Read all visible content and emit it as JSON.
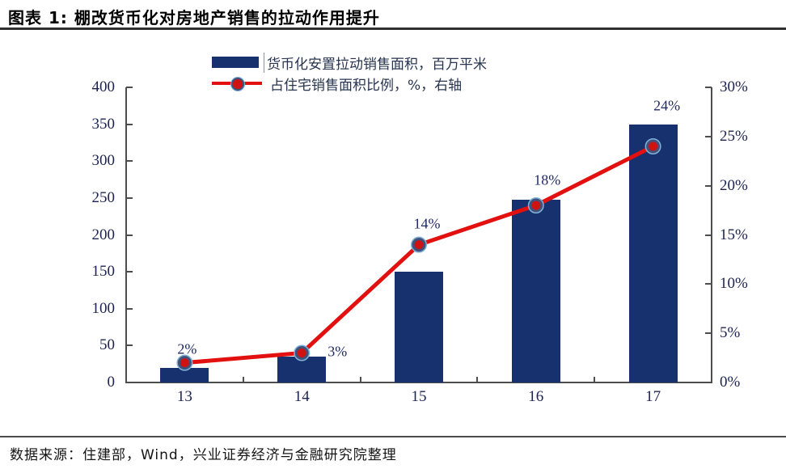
{
  "title": "图表 1: 棚改货币化对房地产销售的拉动作用提升",
  "source": "数据来源：住建部，Wind，兴业证券经济与金融研究院整理",
  "legend": {
    "bar_label": "货币化安置拉动销售面积，百万平米",
    "line_label": "占住宅销售面积比例，%，右轴"
  },
  "colors": {
    "bar": "#16316d",
    "line": "#e31010",
    "marker_fill": "#cf1212",
    "marker_ring": "#41517a",
    "marker_halo": "#7fb2d9",
    "axis": "#4d4d4d",
    "tick_text": "#1c2350",
    "data_label_text": "#1f2a66"
  },
  "chart_data": {
    "type": "bar",
    "subtype": "bar+line-dual-axis",
    "title": "棚改货币化对房地产销售的拉动作用提升",
    "categories": [
      "13",
      "14",
      "15",
      "16",
      "17"
    ],
    "series": [
      {
        "name": "货币化安置拉动销售面积，百万平米",
        "type": "bar",
        "axis": "left",
        "values": [
          20,
          35,
          150,
          248,
          350
        ]
      },
      {
        "name": "占住宅销售面积比例，%，右轴",
        "type": "line",
        "axis": "right",
        "values": [
          2,
          3,
          14,
          18,
          24
        ],
        "point_labels": [
          "2%",
          "3%",
          "14%",
          "18%",
          "24%"
        ]
      }
    ],
    "left_axis": {
      "min": 0,
      "max": 400,
      "tick_values": [
        0,
        50,
        100,
        150,
        200,
        250,
        300,
        350,
        400
      ],
      "tick_labels": [
        "0",
        "50",
        "100",
        "150",
        "200",
        "250",
        "300",
        "350",
        "400"
      ]
    },
    "right_axis": {
      "min": 0,
      "max": 30,
      "tick_values": [
        0,
        5,
        10,
        15,
        20,
        25,
        30
      ],
      "tick_labels": [
        "0%",
        "5%",
        "10%",
        "15%",
        "20%",
        "25%",
        "30%"
      ]
    },
    "grid": false,
    "legend_position": "top-center"
  }
}
